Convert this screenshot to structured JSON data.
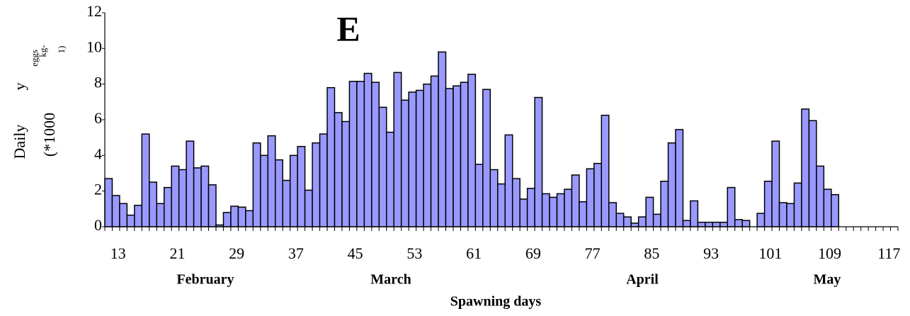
{
  "chart_data": {
    "type": "bar",
    "title": "E",
    "x_label": "Spawning days",
    "y_label_parts": [
      "Daily",
      "y",
      "(*1000",
      "eggs",
      "kg-",
      "1)"
    ],
    "month_labels": [
      "February",
      "March",
      "April",
      "May"
    ],
    "color": "#9999ff",
    "categories": [
      null,
      "13",
      null,
      null,
      null,
      null,
      null,
      null,
      null,
      "21",
      null,
      null,
      null,
      null,
      null,
      null,
      null,
      "29",
      null,
      null,
      null,
      null,
      null,
      null,
      null,
      "37",
      null,
      null,
      null,
      null,
      null,
      null,
      null,
      "45",
      null,
      null,
      null,
      null,
      null,
      null,
      null,
      "53",
      null,
      null,
      null,
      null,
      null,
      null,
      null,
      "61",
      null,
      null,
      null,
      null,
      null,
      null,
      null,
      "69",
      null,
      null,
      null,
      null,
      null,
      null,
      null,
      "77",
      null,
      null,
      null,
      null,
      null,
      null,
      null,
      "85",
      null,
      null,
      null,
      null,
      null,
      null,
      null,
      "93",
      null,
      null,
      null,
      null,
      null,
      null,
      null,
      "101",
      null,
      null,
      null,
      null,
      null,
      null,
      null,
      "109",
      null,
      null,
      null,
      null,
      null,
      null,
      null,
      "117",
      null
    ],
    "values": [
      2.7,
      1.75,
      1.3,
      0.65,
      1.2,
      5.2,
      2.5,
      1.3,
      2.2,
      3.4,
      3.2,
      4.8,
      3.3,
      3.4,
      2.35,
      0.1,
      0.8,
      1.15,
      1.1,
      0.9,
      4.7,
      4.0,
      5.1,
      3.75,
      2.6,
      4.0,
      4.5,
      2.05,
      4.7,
      5.2,
      7.8,
      6.4,
      5.9,
      8.15,
      8.15,
      8.6,
      8.1,
      6.7,
      5.3,
      8.65,
      7.1,
      7.55,
      7.65,
      8.0,
      8.45,
      9.8,
      7.75,
      7.9,
      8.1,
      8.55,
      3.5,
      7.7,
      3.2,
      2.4,
      5.15,
      2.7,
      1.55,
      2.15,
      7.25,
      1.85,
      1.65,
      1.85,
      2.1,
      2.9,
      1.4,
      3.25,
      3.55,
      6.25,
      1.35,
      0.75,
      0.55,
      0.2,
      0.55,
      1.65,
      0.7,
      2.55,
      4.7,
      5.45,
      0.35,
      1.45,
      0.25,
      0.25,
      0.25,
      0.25,
      2.2,
      0.4,
      0.35,
      0,
      0.75,
      2.55,
      4.8,
      1.35,
      1.3,
      2.45,
      6.6,
      5.95,
      3.4,
      2.1,
      1.8,
      null,
      null,
      null,
      null,
      null,
      null,
      null,
      null
    ],
    "ylim": [
      0,
      12
    ],
    "yticks": [
      0,
      2,
      4,
      6,
      8,
      10,
      12
    ]
  }
}
